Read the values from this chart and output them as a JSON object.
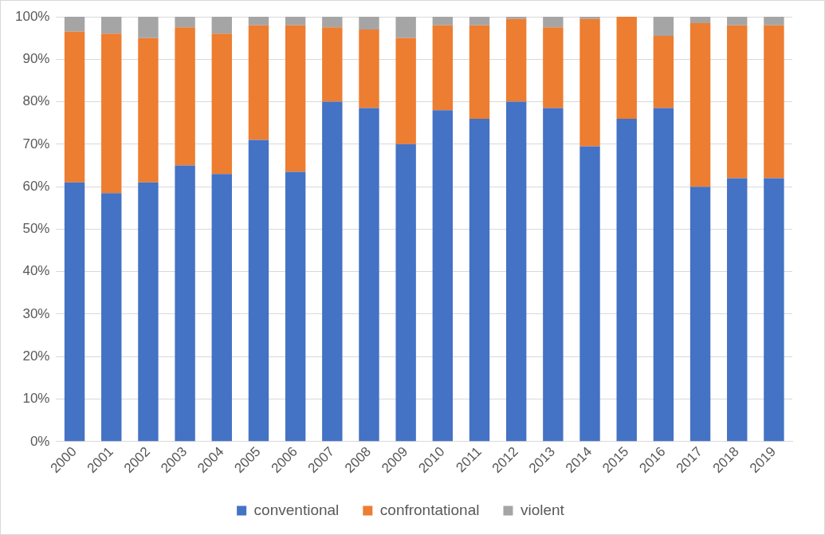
{
  "chart_data": {
    "type": "bar",
    "stacked": true,
    "categories": [
      "2000",
      "2001",
      "2002",
      "2003",
      "2004",
      "2005",
      "2006",
      "2007",
      "2008",
      "2009",
      "2010",
      "2011",
      "2012",
      "2013",
      "2014",
      "2015",
      "2016",
      "2017",
      "2018",
      "2019"
    ],
    "series": [
      {
        "name": "conventional",
        "color": "#4472c4",
        "values": [
          61,
          58.5,
          61,
          65,
          63,
          71,
          63.5,
          80,
          78.5,
          70,
          78,
          76,
          80,
          78.5,
          69.5,
          76,
          78.5,
          60,
          62,
          62
        ]
      },
      {
        "name": "confrontational",
        "color": "#ed7d31",
        "values": [
          35.5,
          37.5,
          34,
          32.5,
          33,
          27,
          34.5,
          17.5,
          18.5,
          25,
          20,
          22,
          19.5,
          19,
          30,
          24,
          17,
          38.5,
          36,
          36
        ]
      },
      {
        "name": "violent",
        "color": "#a5a5a5",
        "values": [
          3.5,
          4,
          5,
          2.5,
          4,
          2,
          2,
          2.5,
          3,
          5,
          2,
          2,
          0.5,
          2.5,
          0.5,
          0,
          4.5,
          1.5,
          2,
          2
        ]
      }
    ],
    "ylim": [
      0,
      100
    ],
    "yticks": [
      {
        "value": 0,
        "label": "0%"
      },
      {
        "value": 10,
        "label": "10%"
      },
      {
        "value": 20,
        "label": "20%"
      },
      {
        "value": 30,
        "label": "30%"
      },
      {
        "value": 40,
        "label": "40%"
      },
      {
        "value": 50,
        "label": "50%"
      },
      {
        "value": 60,
        "label": "60%"
      },
      {
        "value": 70,
        "label": "70%"
      },
      {
        "value": 80,
        "label": "80%"
      },
      {
        "value": 90,
        "label": "90%"
      },
      {
        "value": 100,
        "label": "100%"
      }
    ],
    "grid": "y",
    "legend": "bottom"
  }
}
